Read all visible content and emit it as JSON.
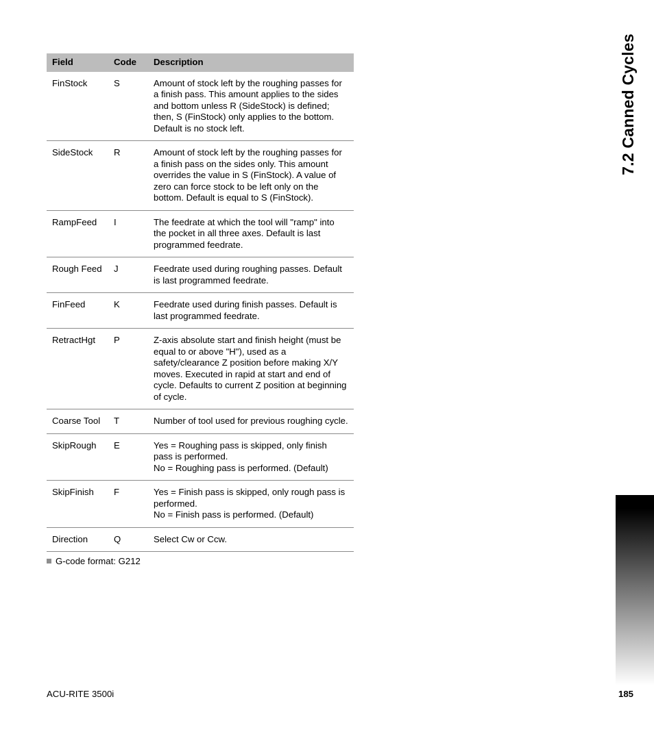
{
  "side_tab": "7.2 Canned Cycles",
  "table": {
    "header_bg": "#bcbcbc",
    "columns": {
      "field": "Field",
      "code": "Code",
      "desc": "Description"
    },
    "rows": [
      {
        "field": "FinStock",
        "code": "S",
        "desc": "Amount of stock left by the roughing passes for a finish pass. This amount applies to the sides and bottom unless R (SideStock) is defined; then, S (FinStock) only applies to the bottom. Default is no stock left."
      },
      {
        "field": "SideStock",
        "code": "R",
        "desc": "Amount of stock left by the roughing passes for a finish pass on the sides only. This amount overrides the value in S (FinStock). A value of zero can force stock to be left only on the bottom. Default is equal to S (FinStock)."
      },
      {
        "field": "RampFeed",
        "code": "I",
        "desc": "The feedrate at which the tool will \"ramp\" into the pocket in all three axes. Default is last programmed feedrate."
      },
      {
        "field": "Rough Feed",
        "code": "J",
        "desc": "Feedrate used during roughing passes. Default is last programmed feedrate."
      },
      {
        "field": "FinFeed",
        "code": "K",
        "desc": "Feedrate used during finish passes. Default is last programmed feedrate."
      },
      {
        "field": "RetractHgt",
        "code": "P",
        "desc": "Z-axis absolute start and finish height (must be equal to or above \"H\"), used as a safety/clearance Z position before making X/Y moves. Executed in rapid at start and end of cycle. Defaults to current Z position at beginning of cycle."
      },
      {
        "field": "Coarse Tool",
        "code": "T",
        "desc": "Number of tool used for previous roughing cycle."
      },
      {
        "field": "SkipRough",
        "code": "E",
        "desc": "Yes = Roughing pass is skipped, only finish pass is performed.\nNo = Roughing pass is performed. (Default)"
      },
      {
        "field": "SkipFinish",
        "code": "F",
        "desc": "Yes = Finish pass is skipped, only rough pass is performed.\nNo = Finish pass is performed. (Default)"
      },
      {
        "field": "Direction",
        "code": "Q",
        "desc": "Select Cw or Ccw."
      }
    ]
  },
  "gcode_note": "G-code format: G212",
  "footer": {
    "product": "ACU-RITE 3500i",
    "page": "185"
  },
  "colors": {
    "row_border": "#8a8a8a",
    "bullet": "#8e8e8e",
    "text": "#000000",
    "bg": "#ffffff"
  }
}
